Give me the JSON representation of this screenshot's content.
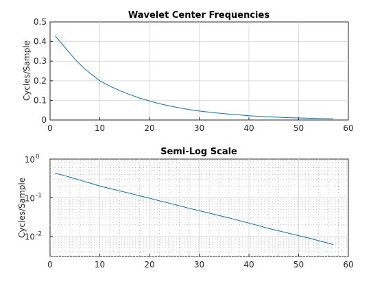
{
  "chart_data": [
    {
      "type": "line",
      "title": "Wavelet Center Frequencies",
      "xlabel": "",
      "ylabel": "Cycles/Sample",
      "xlim": [
        0,
        60
      ],
      "ylim": [
        0,
        0.5
      ],
      "yscale": "linear",
      "grid": true,
      "xticks": [
        "0",
        "10",
        "20",
        "30",
        "40",
        "50",
        "60"
      ],
      "yticks": [
        "0",
        "0.1",
        "0.2",
        "0.3",
        "0.4",
        "0.5"
      ],
      "series": [
        {
          "color": "#0072bd",
          "x": [
            1,
            2,
            3,
            4,
            5,
            6,
            7,
            8,
            9,
            10,
            12,
            14,
            16,
            18,
            20,
            22,
            24,
            26,
            28,
            30,
            33,
            36,
            40,
            44,
            48,
            52,
            56,
            57
          ],
          "y": [
            0.43,
            0.4,
            0.37,
            0.34,
            0.31,
            0.285,
            0.26,
            0.24,
            0.22,
            0.2,
            0.173,
            0.15,
            0.13,
            0.112,
            0.097,
            0.083,
            0.072,
            0.062,
            0.053,
            0.046,
            0.037,
            0.03,
            0.022,
            0.016,
            0.012,
            0.009,
            0.0066,
            0.0061
          ]
        }
      ]
    },
    {
      "type": "line",
      "title": "Semi-Log Scale",
      "xlabel": "",
      "ylabel": "Cycles/Sample",
      "xlim": [
        0,
        60
      ],
      "ylim": [
        0.003,
        1
      ],
      "yscale": "log",
      "grid": true,
      "minor_grid": true,
      "xticks": [
        "0",
        "10",
        "20",
        "30",
        "40",
        "50",
        "60"
      ],
      "yticks": [
        {
          "base": "10",
          "exp": "0",
          "value": 1
        },
        {
          "base": "10",
          "exp": "-1",
          "value": 0.1
        },
        {
          "base": "10",
          "exp": "-2",
          "value": 0.01
        }
      ],
      "series": [
        {
          "color": "#0072bd",
          "x": [
            1,
            2,
            3,
            4,
            5,
            6,
            7,
            8,
            9,
            10,
            12,
            14,
            16,
            18,
            20,
            22,
            24,
            26,
            28,
            30,
            33,
            36,
            40,
            44,
            48,
            52,
            56,
            57
          ],
          "y": [
            0.43,
            0.4,
            0.37,
            0.34,
            0.31,
            0.285,
            0.26,
            0.24,
            0.22,
            0.2,
            0.173,
            0.15,
            0.13,
            0.112,
            0.097,
            0.083,
            0.072,
            0.062,
            0.053,
            0.046,
            0.037,
            0.03,
            0.022,
            0.016,
            0.012,
            0.009,
            0.0066,
            0.0061
          ]
        }
      ]
    }
  ]
}
